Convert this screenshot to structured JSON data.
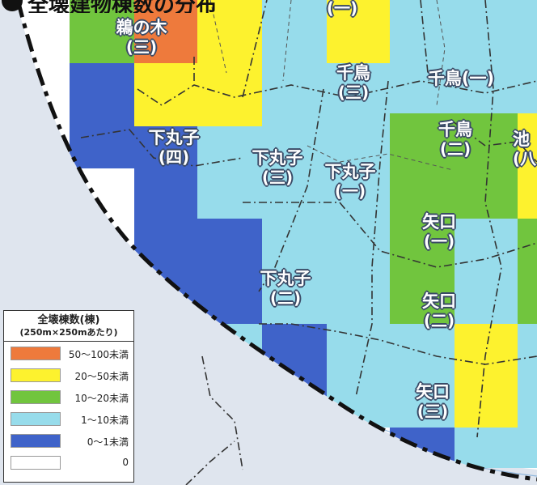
{
  "header": {
    "title": "全壊建物棟数の分布"
  },
  "legend": {
    "title": "全壊棟数(棟)",
    "subtitle": "(250m×250mあたり)",
    "items": [
      {
        "label": "50〜100未満",
        "color": "#ee7a3c"
      },
      {
        "label": "20〜50未満",
        "color": "#fdf22e"
      },
      {
        "label": "10〜20未満",
        "color": "#71c53e"
      },
      {
        "label": "1〜10未満",
        "color": "#97dceb"
      },
      {
        "label": "0〜1未満",
        "color": "#3f63c9"
      },
      {
        "label": "0",
        "color": "#ffffff"
      }
    ]
  },
  "colors": {
    "orange": "#ee7a3c",
    "yellow": "#fdf22e",
    "green": "#71c53e",
    "lightblue": "#97dceb",
    "blue": "#3f63c9",
    "white": "#ffffff",
    "river": "#cfd6e0",
    "boundary": "#111111"
  },
  "places": [
    {
      "id": "unoki-3",
      "name": "鵜の木",
      "num": "(三)"
    },
    {
      "id": "top-1",
      "name": "",
      "num": "(一)"
    },
    {
      "id": "chidori-3",
      "name": "千鳥",
      "num": "(三)"
    },
    {
      "id": "chidori-1",
      "name": "千鳥(一)",
      "num": ""
    },
    {
      "id": "chidori-2",
      "name": "千鳥",
      "num": "(二)"
    },
    {
      "id": "ike",
      "name": "池",
      "num": "(八"
    },
    {
      "id": "shimomaruko-4",
      "name": "下丸子",
      "num": "(四)"
    },
    {
      "id": "shimomaruko-3",
      "name": "下丸子",
      "num": "(三)"
    },
    {
      "id": "shimomaruko-1",
      "name": "下丸子",
      "num": "(一)"
    },
    {
      "id": "yaguchi-1",
      "name": "矢口",
      "num": "(一)"
    },
    {
      "id": "shimomaruko-2",
      "name": "下丸子",
      "num": "(二)"
    },
    {
      "id": "yaguchi-2",
      "name": "矢口",
      "num": "(二)"
    },
    {
      "id": "yaguchi-3",
      "name": "矢口",
      "num": "(三)"
    }
  ]
}
